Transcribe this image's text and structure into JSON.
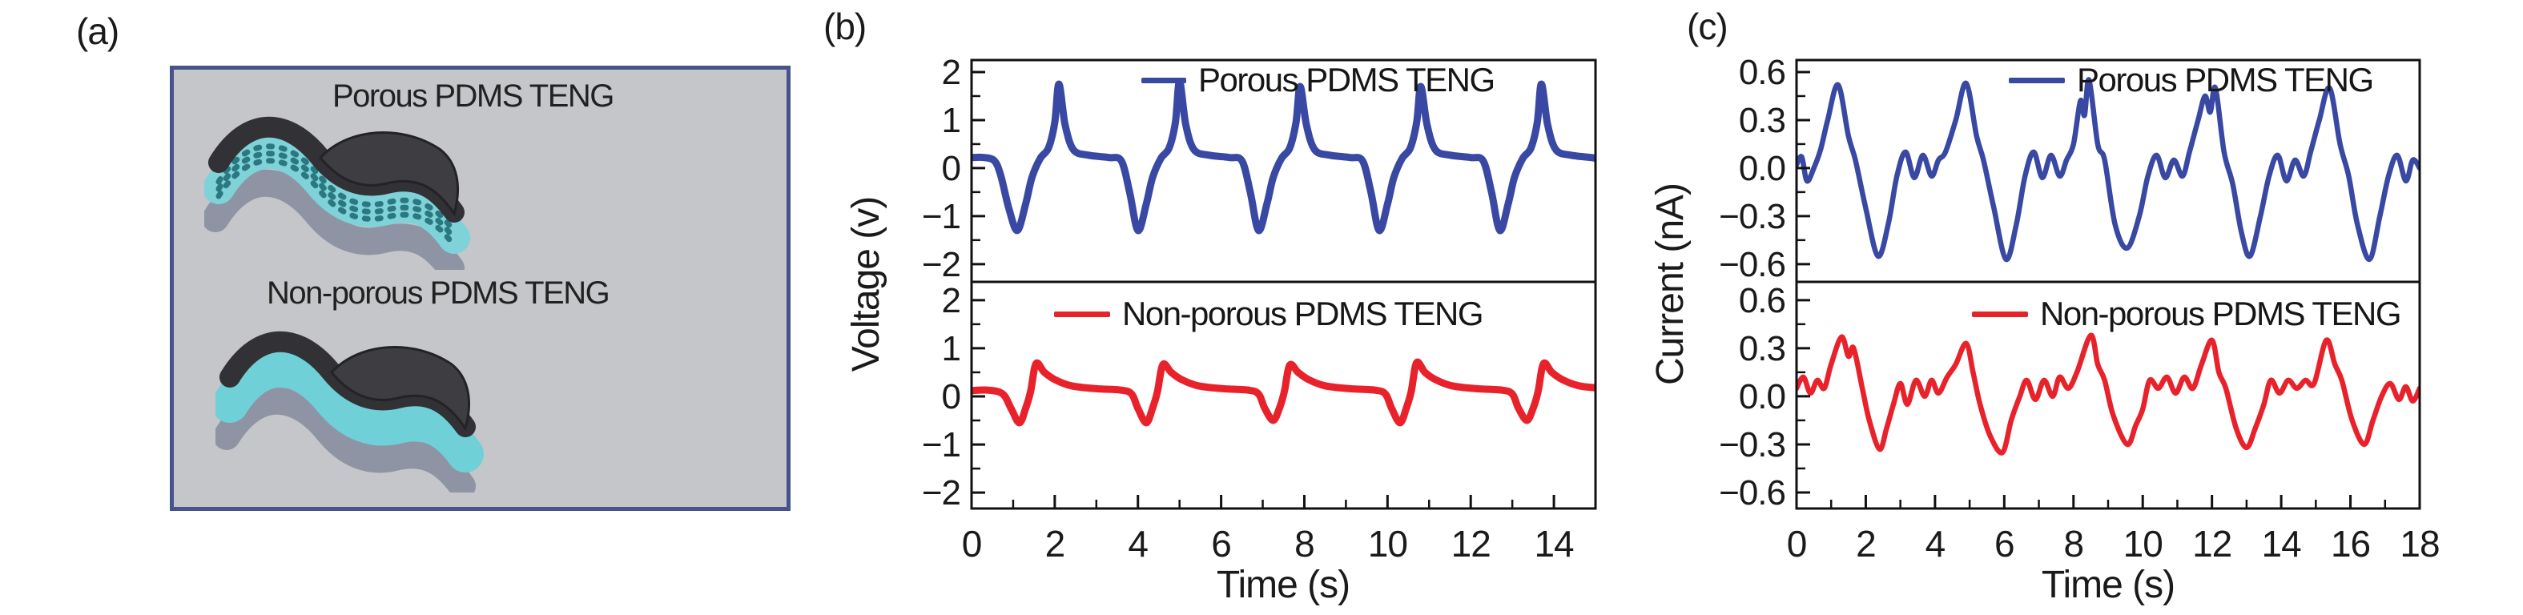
{
  "figure": {
    "panel_a": {
      "label": "(a)",
      "device_top_label": "Porous PDMS TENG",
      "device_bottom_label": "Non-porous PDMS TENG",
      "box_bg": "#c5c6c9",
      "box_border": "#46538c"
    },
    "panel_b": {
      "label": "(b)"
    },
    "panel_c": {
      "label": "(c)"
    }
  },
  "colors": {
    "porous_blue": "#3949a3",
    "nonporous_red": "#e8222b",
    "axis_black": "#111111",
    "device_teal": "#7ed2d8",
    "device_dark": "#313136",
    "device_gray": "#8e94a4"
  },
  "chart_data": [
    {
      "id": "voltage-panel",
      "type": "line",
      "xlabel": "Time (s)",
      "ylabel": "Voltage (v)",
      "xlim": [
        0,
        15
      ],
      "xtick_vals": [
        0,
        2,
        4,
        6,
        8,
        10,
        12,
        14
      ],
      "xtick_labels": [
        "0",
        "2",
        "4",
        "6",
        "8",
        "10",
        "12",
        "14"
      ],
      "legend_position": "top-right-inside",
      "grid": false,
      "subplots": [
        {
          "name": "Porous PDMS TENG",
          "color": "#3949a3",
          "ylim": [
            -2.37,
            2.25
          ],
          "ytick_vals": [
            2,
            1,
            0,
            -1,
            -2
          ],
          "ytick_labels": [
            "2",
            "1",
            "0",
            "−1",
            "−2"
          ],
          "x": [
            0,
            0.3,
            0.55,
            0.7,
            0.9,
            1.1,
            1.3,
            1.45,
            1.65,
            1.85,
            2.0,
            2.1,
            2.25,
            2.45,
            2.8,
            3.3,
            3.6,
            3.8,
            4.0,
            4.2,
            4.35,
            4.55,
            4.75,
            4.9,
            5.0,
            5.15,
            5.35,
            5.7,
            6.2,
            6.5,
            6.7,
            6.9,
            7.1,
            7.25,
            7.45,
            7.65,
            7.8,
            7.9,
            8.05,
            8.25,
            8.6,
            9.1,
            9.4,
            9.6,
            9.8,
            10.0,
            10.15,
            10.35,
            10.55,
            10.7,
            10.8,
            10.95,
            11.15,
            11.5,
            12.0,
            12.3,
            12.5,
            12.7,
            12.9,
            13.05,
            13.25,
            13.45,
            13.6,
            13.7,
            13.85,
            14.05,
            14.4,
            14.9,
            15.0
          ],
          "y": [
            0.22,
            0.22,
            0.15,
            -0.15,
            -0.85,
            -1.3,
            -0.75,
            -0.2,
            0.2,
            0.42,
            0.95,
            1.75,
            0.9,
            0.38,
            0.27,
            0.22,
            0.15,
            -0.5,
            -1.3,
            -0.75,
            -0.2,
            0.2,
            0.42,
            0.95,
            1.8,
            0.9,
            0.38,
            0.27,
            0.22,
            0.15,
            -0.5,
            -1.3,
            -0.75,
            -0.2,
            0.2,
            0.42,
            0.95,
            1.7,
            0.9,
            0.38,
            0.27,
            0.22,
            0.15,
            -0.5,
            -1.3,
            -0.75,
            -0.2,
            0.2,
            0.42,
            0.95,
            1.7,
            0.9,
            0.38,
            0.27,
            0.22,
            0.15,
            -0.5,
            -1.3,
            -0.75,
            -0.2,
            0.2,
            0.42,
            0.95,
            1.75,
            0.9,
            0.38,
            0.27,
            0.22,
            0.2
          ]
        },
        {
          "name": "Non-porous PDMS TENG",
          "color": "#e8222b",
          "ylim": [
            -2.33,
            2.38
          ],
          "ytick_vals": [
            2,
            1,
            0,
            -1,
            -2
          ],
          "ytick_labels": [
            "2",
            "1",
            "0",
            "−1",
            "−2"
          ],
          "x": [
            0,
            0.4,
            0.75,
            0.95,
            1.15,
            1.3,
            1.42,
            1.55,
            1.75,
            2.0,
            2.4,
            3.0,
            3.6,
            3.85,
            4.0,
            4.2,
            4.35,
            4.47,
            4.6,
            4.8,
            5.05,
            5.45,
            6.05,
            6.65,
            6.9,
            7.05,
            7.25,
            7.4,
            7.52,
            7.65,
            7.85,
            8.1,
            8.5,
            9.1,
            9.7,
            9.95,
            10.1,
            10.3,
            10.45,
            10.57,
            10.7,
            10.9,
            11.15,
            11.55,
            12.15,
            12.75,
            13.0,
            13.15,
            13.35,
            13.5,
            13.62,
            13.75,
            13.95,
            14.2,
            14.6,
            15.0
          ],
          "y": [
            0.12,
            0.13,
            0.05,
            -0.25,
            -0.55,
            -0.25,
            0.1,
            0.68,
            0.5,
            0.35,
            0.22,
            0.16,
            0.13,
            0.05,
            -0.25,
            -0.55,
            -0.25,
            0.1,
            0.66,
            0.5,
            0.35,
            0.22,
            0.16,
            0.13,
            0.05,
            -0.25,
            -0.5,
            -0.25,
            0.1,
            0.65,
            0.5,
            0.35,
            0.22,
            0.16,
            0.13,
            0.05,
            -0.25,
            -0.55,
            -0.25,
            0.1,
            0.7,
            0.5,
            0.35,
            0.22,
            0.16,
            0.13,
            0.05,
            -0.25,
            -0.5,
            -0.25,
            0.1,
            0.68,
            0.5,
            0.35,
            0.22,
            0.18
          ]
        }
      ]
    },
    {
      "id": "current-panel",
      "type": "line",
      "xlabel": "Time (s)",
      "ylabel": "Current (nA)",
      "xlim": [
        0,
        18
      ],
      "xtick_vals": [
        0,
        2,
        4,
        6,
        8,
        10,
        12,
        14,
        16,
        18
      ],
      "xtick_labels": [
        "0",
        "2",
        "4",
        "6",
        "8",
        "10",
        "12",
        "14",
        "16",
        "18"
      ],
      "legend_position": "top-right-inside",
      "grid": false,
      "subplots": [
        {
          "name": "Porous PDMS TENG",
          "color": "#3949a3",
          "ylim": [
            -0.711,
            0.675
          ],
          "ytick_vals": [
            0.6,
            0.3,
            0.0,
            -0.3,
            -0.6
          ],
          "ytick_labels": [
            "0.6",
            "0.3",
            "0.0",
            "−0.3",
            "−0.6"
          ],
          "x": [
            0,
            0.15,
            0.3,
            0.5,
            0.7,
            0.9,
            1.2,
            1.5,
            1.7,
            2.0,
            2.35,
            2.65,
            2.9,
            3.15,
            3.4,
            3.65,
            3.9,
            4.1,
            4.3,
            4.6,
            4.9,
            5.2,
            5.4,
            5.7,
            6.05,
            6.35,
            6.6,
            6.85,
            7.1,
            7.35,
            7.6,
            7.8,
            8.0,
            8.2,
            8.32,
            8.45,
            8.7,
            8.9,
            9.2,
            9.55,
            9.9,
            10.15,
            10.4,
            10.65,
            10.9,
            11.15,
            11.35,
            11.6,
            11.8,
            11.95,
            12.1,
            12.35,
            12.6,
            12.85,
            13.1,
            13.4,
            13.65,
            13.9,
            14.15,
            14.4,
            14.65,
            14.85,
            15.1,
            15.4,
            15.7,
            15.95,
            16.2,
            16.55,
            16.85,
            17.1,
            17.35,
            17.6,
            17.8,
            18
          ],
          "y": [
            0.02,
            0.07,
            -0.08,
            0.0,
            0.12,
            0.3,
            0.52,
            0.2,
            0.05,
            -0.25,
            -0.55,
            -0.35,
            -0.05,
            0.1,
            -0.06,
            0.08,
            -0.05,
            0.05,
            0.1,
            0.3,
            0.53,
            0.2,
            0.05,
            -0.25,
            -0.57,
            -0.35,
            -0.05,
            0.1,
            -0.06,
            0.08,
            -0.05,
            0.05,
            0.15,
            0.42,
            0.33,
            0.55,
            0.15,
            0.05,
            -0.35,
            -0.5,
            -0.3,
            -0.05,
            0.08,
            -0.06,
            0.05,
            -0.05,
            0.1,
            0.3,
            0.45,
            0.35,
            0.5,
            0.1,
            -0.1,
            -0.4,
            -0.55,
            -0.3,
            -0.05,
            0.08,
            -0.08,
            0.05,
            -0.05,
            0.1,
            0.3,
            0.5,
            0.15,
            -0.05,
            -0.35,
            -0.57,
            -0.3,
            -0.05,
            0.08,
            -0.08,
            0.05,
            0.0
          ]
        },
        {
          "name": "Non-porous PDMS TENG",
          "color": "#e8222b",
          "ylim": [
            -0.7,
            0.714
          ],
          "ytick_vals": [
            0.6,
            0.3,
            0.0,
            -0.3,
            -0.6
          ],
          "ytick_labels": [
            "0.6",
            "0.3",
            "0.0",
            "−0.3",
            "−0.6"
          ],
          "x": [
            0,
            0.2,
            0.4,
            0.6,
            0.8,
            1.0,
            1.3,
            1.5,
            1.65,
            1.9,
            2.1,
            2.4,
            2.6,
            2.8,
            3.0,
            3.2,
            3.45,
            3.7,
            3.9,
            4.1,
            4.35,
            4.6,
            4.9,
            5.1,
            5.3,
            5.6,
            5.95,
            6.2,
            6.45,
            6.65,
            6.9,
            7.15,
            7.4,
            7.6,
            7.85,
            8.1,
            8.5,
            8.7,
            8.9,
            9.15,
            9.55,
            9.8,
            10.0,
            10.2,
            10.45,
            10.7,
            10.95,
            11.2,
            11.45,
            11.7,
            12.0,
            12.2,
            12.4,
            12.7,
            13.0,
            13.25,
            13.5,
            13.7,
            13.95,
            14.2,
            14.45,
            14.7,
            14.95,
            15.3,
            15.55,
            15.75,
            16.05,
            16.4,
            16.65,
            16.9,
            17.15,
            17.4,
            17.6,
            17.8,
            18
          ],
          "y": [
            0.05,
            0.12,
            0.02,
            0.1,
            0.05,
            0.2,
            0.37,
            0.25,
            0.3,
            0.05,
            -0.15,
            -0.33,
            -0.2,
            -0.05,
            0.08,
            -0.05,
            0.1,
            0.0,
            0.1,
            0.02,
            0.12,
            0.2,
            0.33,
            0.15,
            -0.05,
            -0.25,
            -0.35,
            -0.15,
            0.0,
            0.1,
            -0.02,
            0.1,
            0.0,
            0.12,
            0.05,
            0.15,
            0.38,
            0.2,
            0.1,
            -0.12,
            -0.3,
            -0.18,
            -0.08,
            0.1,
            0.05,
            0.12,
            0.02,
            0.12,
            0.05,
            0.2,
            0.35,
            0.15,
            0.05,
            -0.2,
            -0.32,
            -0.2,
            -0.05,
            0.1,
            0.02,
            0.1,
            0.05,
            0.1,
            0.08,
            0.35,
            0.2,
            0.1,
            -0.15,
            -0.3,
            -0.15,
            0.0,
            0.08,
            -0.02,
            0.06,
            -0.03,
            0.05
          ]
        }
      ]
    }
  ]
}
